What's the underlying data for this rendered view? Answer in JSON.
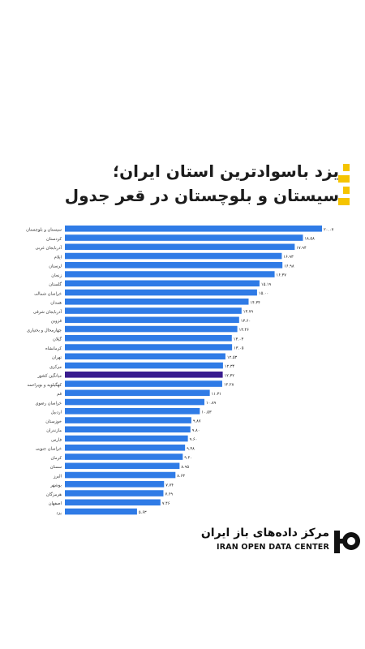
{
  "header": {
    "title_line1": "یزد باسوادترین استان ایران؛",
    "title_line2": "سیستان و بلوچستان در قعر جدول"
  },
  "brand": {
    "name_fa": "مرکز داده‌های باز ایران",
    "name_en": "IRAN OPEN DATA CENTER",
    "logo_icon": "iran-open-data-center-logo"
  },
  "colors": {
    "bar": "#2f7be6",
    "highlight": "#3a1d8f",
    "accent": "#f5c400",
    "background": "#ffffff"
  },
  "chart_data": {
    "type": "bar",
    "orientation": "horizontal",
    "categories": [
      "سیستان و بلوچستان",
      "کردستان",
      "آذربایجان غربی",
      "ایلام",
      "لرستان",
      "زنجان",
      "گلستان",
      "خراسان شمالی",
      "همدان",
      "آذربایجان شرقی",
      "قزوین",
      "چهارمحال و بختیاری",
      "گیلان",
      "کرمانشاه",
      "تهران",
      "مرکزی",
      "میانگین کشور",
      "کهگیلویه و بویراحمد",
      "قم",
      "خراسان رضوی",
      "اردبیل",
      "خوزستان",
      "مازندران",
      "فارس",
      "خراسان جنوبی",
      "کرمان",
      "سمنان",
      "البرز",
      "بوشهر",
      "هرمزگان",
      "اصفهان",
      "یزد"
    ],
    "value_labels": [
      "۲۰.۰۷",
      "۱۸.۵۸",
      "۱۷.۹۴",
      "۱۶.۹۳",
      "۱۶.۹۸",
      "۱۶.۳۷",
      "۱۵.۱۹",
      "۱۵.۰۰",
      "۱۴.۳۴",
      "۱۳.۷۹",
      "۱۳.۶۰",
      "۱۳.۴۶",
      "۱۳.۰۳",
      "۱۳.۰۵",
      "۱۲.۵۳",
      "۱۲.۳۴",
      "۱۲.۳۲",
      "۱۲.۲۸",
      "۱۱.۳۱",
      "۱۰.۸۹",
      "۱۰.۵۳",
      "۹.۸۷",
      "۹.۸۰",
      "۹.۶۰",
      "۹.۳۸",
      "۹.۲۰",
      "۸.۹۵",
      "۸.۶۳",
      "۷.۷۴",
      "۷.۶۹",
      "۷.۴۶",
      "۵.۶۳"
    ],
    "values": [
      20.07,
      18.58,
      17.94,
      16.93,
      16.98,
      16.37,
      15.19,
      15.0,
      14.34,
      13.79,
      13.6,
      13.46,
      13.03,
      13.05,
      12.53,
      12.34,
      12.32,
      12.28,
      11.31,
      10.89,
      10.53,
      9.87,
      9.8,
      9.6,
      9.38,
      9.2,
      8.95,
      8.63,
      7.74,
      7.69,
      7.46,
      5.63
    ],
    "highlight_category": "میانگین کشور",
    "xlim": [
      0,
      20.07
    ],
    "grid": false,
    "legend": "none"
  }
}
